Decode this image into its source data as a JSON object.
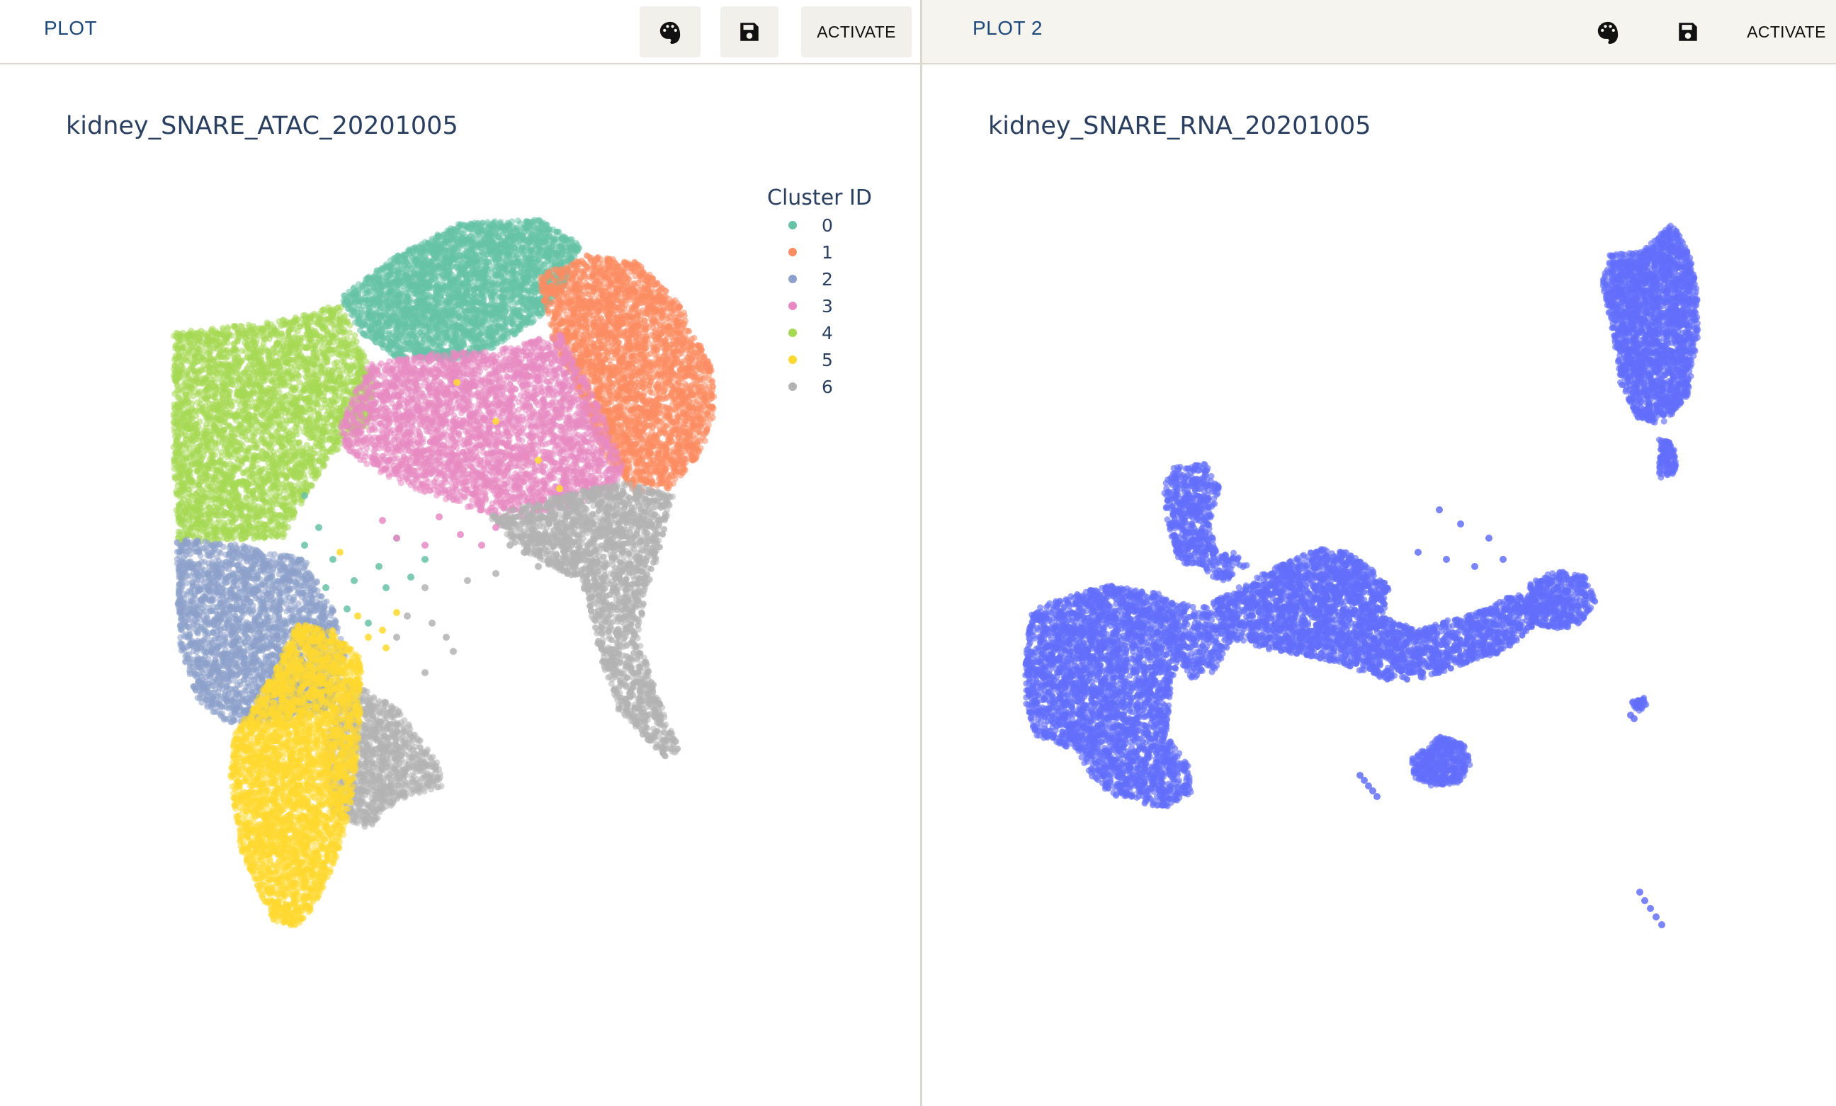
{
  "left_panel": {
    "tab_label": "PLOT",
    "palette_icon": "palette-icon",
    "save_icon": "floppy-disk-icon",
    "activate_label": "ACTIVATE"
  },
  "right_panel": {
    "tab_label": "PLOT 2",
    "palette_icon": "palette-icon",
    "save_icon": "floppy-disk-icon",
    "activate_label": "ACTIVATE"
  },
  "chart_data": [
    {
      "type": "scatter",
      "title": "kidney_SNARE_ATAC_20201005",
      "legend": {
        "title": "Cluster ID",
        "placement": "top-right",
        "entries": [
          "0",
          "1",
          "2",
          "3",
          "4",
          "5",
          "6"
        ]
      },
      "axes_visible": false,
      "grid": false,
      "series": [
        {
          "name": "0",
          "color": "#66c2a5"
        },
        {
          "name": "1",
          "color": "#fc8d62"
        },
        {
          "name": "2",
          "color": "#8da0cb"
        },
        {
          "name": "3",
          "color": "#e78ac3"
        },
        {
          "name": "4",
          "color": "#a6d854"
        },
        {
          "name": "5",
          "color": "#ffd92f"
        },
        {
          "name": "6",
          "color": "#b3b3b3"
        }
      ]
    },
    {
      "type": "scatter",
      "title": "kidney_SNARE_RNA_20201005",
      "axes_visible": false,
      "grid": false,
      "series": [
        {
          "color": "#636efa"
        }
      ]
    }
  ]
}
